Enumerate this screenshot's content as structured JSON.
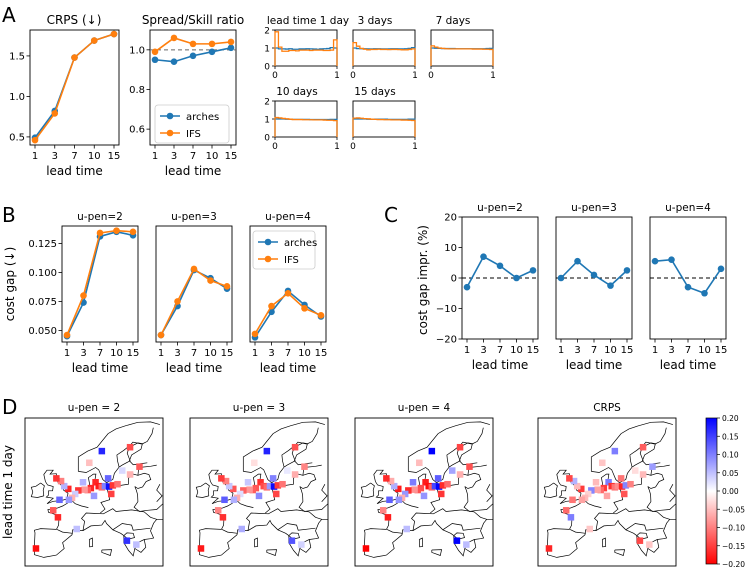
{
  "panel_letters": [
    "A",
    "B",
    "C",
    "D"
  ],
  "colors": {
    "arches": "#1f77b4",
    "ifs": "#ff7f0e",
    "dashed": "#666666",
    "zero": "#000000"
  },
  "chart_data": [
    {
      "id": "crps",
      "panel": "A",
      "type": "line",
      "title": "CRPS (↓)",
      "xlabel": "lead time",
      "ylabel": "",
      "x": [
        1,
        3,
        7,
        10,
        15
      ],
      "xticklabels": [
        "1",
        "3",
        "7",
        "10",
        "15"
      ],
      "yticks": [
        0.5,
        1.0,
        1.5
      ],
      "yticklabels": [
        "0.5",
        "1.0",
        "1.5"
      ],
      "ylim": [
        0.4,
        1.82
      ],
      "series": [
        {
          "name": "arches",
          "values": [
            0.49,
            0.82,
            1.48,
            1.69,
            1.77
          ]
        },
        {
          "name": "IFS",
          "values": [
            0.46,
            0.79,
            1.48,
            1.69,
            1.77
          ]
        }
      ]
    },
    {
      "id": "spread",
      "panel": "A",
      "type": "line",
      "title": "Spread/Skill ratio",
      "xlabel": "lead time",
      "ylabel": "",
      "x": [
        1,
        3,
        7,
        10,
        15
      ],
      "xticklabels": [
        "1",
        "3",
        "7",
        "10",
        "15"
      ],
      "yticks": [
        0.6,
        0.8,
        1.0
      ],
      "yticklabels": [
        "0.6",
        "0.8",
        "1.0"
      ],
      "ylim": [
        0.52,
        1.1
      ],
      "reference_line": 1.0,
      "legend": [
        "arches",
        "IFS"
      ],
      "legend_loc": "lower-right",
      "series": [
        {
          "name": "arches",
          "values": [
            0.95,
            0.94,
            0.97,
            0.99,
            1.01
          ]
        },
        {
          "name": "IFS",
          "values": [
            0.99,
            1.06,
            1.03,
            1.03,
            1.04
          ]
        }
      ]
    },
    {
      "id": "rank_histograms",
      "panel": "A",
      "type": "line",
      "description": "rank histograms (step lines)",
      "xticks": [
        0,
        1
      ],
      "xticklabels": [
        "0",
        "1"
      ],
      "yticks": [
        0,
        1,
        2
      ],
      "yticklabels": [
        "0",
        "1",
        "2"
      ],
      "ylim": [
        0,
        2
      ],
      "plots": [
        {
          "title": "lead time 1 day",
          "show_y": true,
          "arches": [
            1.0,
            0.95,
            0.95,
            0.94,
            0.96,
            0.93,
            0.93,
            0.95,
            0.95,
            0.96,
            0.95,
            0.94,
            0.93,
            0.95,
            0.96,
            0.97,
            1.02,
            1.0
          ],
          "ifs": [
            1.9,
            1.05,
            0.82,
            0.82,
            0.86,
            0.86,
            0.84,
            0.88,
            0.88,
            0.88,
            0.86,
            0.88,
            0.88,
            0.88,
            0.86,
            0.86,
            0.88,
            1.45
          ]
        },
        {
          "title": "3 days",
          "show_y": false,
          "arches": [
            1.0,
            0.97,
            0.96,
            0.96,
            0.95,
            0.95,
            0.96,
            0.96,
            0.95,
            0.95,
            0.95,
            0.96,
            0.96,
            0.95,
            0.95,
            0.96,
            0.98,
            1.02
          ],
          "ifs": [
            1.3,
            1.1,
            0.98,
            0.93,
            0.9,
            0.92,
            0.92,
            0.93,
            0.92,
            0.92,
            0.91,
            0.92,
            0.92,
            0.91,
            0.9,
            0.9,
            0.92,
            0.95
          ]
        },
        {
          "title": "7 days",
          "show_y": false,
          "arches": [
            1.0,
            0.99,
            0.98,
            0.97,
            0.97,
            0.97,
            0.97,
            0.96,
            0.96,
            0.96,
            0.96,
            0.96,
            0.96,
            0.96,
            0.96,
            0.96,
            0.97,
            0.98
          ],
          "ifs": [
            1.12,
            1.05,
            1.0,
            0.98,
            0.96,
            0.95,
            0.95,
            0.95,
            0.95,
            0.95,
            0.95,
            0.95,
            0.94,
            0.94,
            0.94,
            0.93,
            0.93,
            0.92
          ]
        },
        {
          "title": "10 days",
          "show_y": true,
          "arches": [
            1.0,
            1.0,
            1.0,
            0.99,
            0.99,
            0.98,
            0.98,
            0.98,
            0.98,
            0.98,
            0.97,
            0.97,
            0.97,
            0.97,
            0.97,
            0.97,
            0.98,
            0.98
          ],
          "ifs": [
            1.08,
            1.06,
            1.03,
            1.01,
            0.99,
            0.97,
            0.97,
            0.97,
            0.96,
            0.96,
            0.96,
            0.95,
            0.95,
            0.95,
            0.94,
            0.93,
            0.93,
            0.91
          ]
        },
        {
          "title": "15 days",
          "show_y": false,
          "arches": [
            1.0,
            1.0,
            1.0,
            1.0,
            0.99,
            0.99,
            0.99,
            0.99,
            0.99,
            0.99,
            0.98,
            0.98,
            0.98,
            0.98,
            0.98,
            0.98,
            0.99,
            0.99
          ],
          "ifs": [
            1.05,
            1.06,
            1.04,
            1.02,
            1.01,
            0.99,
            0.98,
            0.97,
            0.97,
            0.96,
            0.96,
            0.95,
            0.95,
            0.95,
            0.94,
            0.94,
            0.93,
            0.92
          ]
        }
      ]
    },
    {
      "id": "cost_gap",
      "panel": "B",
      "type": "line",
      "ylabel": "cost gap (↓)",
      "xlabel": "lead time",
      "x": [
        1,
        3,
        7,
        10,
        15
      ],
      "xticklabels": [
        "1",
        "3",
        "7",
        "10",
        "15"
      ],
      "yticks": [
        0.05,
        0.075,
        0.1,
        0.125
      ],
      "yticklabels": [
        "0.050",
        "0.075",
        "0.100",
        "0.125"
      ],
      "ylim": [
        0.04,
        0.14
      ],
      "legend": [
        "arches",
        "IFS"
      ],
      "legend_loc": "upper-right",
      "subplots": [
        {
          "title": "u-pen=2",
          "series": [
            {
              "name": "arches",
              "values": [
                0.045,
                0.074,
                0.131,
                0.135,
                0.132
              ]
            },
            {
              "name": "IFS",
              "values": [
                0.046,
                0.08,
                0.134,
                0.136,
                0.135
              ]
            }
          ]
        },
        {
          "title": "u-pen=3",
          "series": [
            {
              "name": "arches",
              "values": [
                0.046,
                0.071,
                0.102,
                0.095,
                0.086
              ]
            },
            {
              "name": "IFS",
              "values": [
                0.046,
                0.075,
                0.103,
                0.093,
                0.088
              ]
            }
          ]
        },
        {
          "title": "u-pen=4",
          "series": [
            {
              "name": "arches",
              "values": [
                0.044,
                0.066,
                0.084,
                0.072,
                0.062
              ]
            },
            {
              "name": "IFS",
              "values": [
                0.047,
                0.071,
                0.082,
                0.069,
                0.063
              ]
            }
          ]
        }
      ]
    },
    {
      "id": "cost_gap_impr",
      "panel": "C",
      "type": "line",
      "ylabel": "cost gap impr. (%)",
      "xlabel": "lead time",
      "x": [
        1,
        3,
        7,
        10,
        15
      ],
      "xticklabels": [
        "1",
        "3",
        "7",
        "10",
        "15"
      ],
      "yticks": [
        -20,
        -10,
        0,
        10,
        20
      ],
      "yticklabels": [
        "−20",
        "−10",
        "0",
        "10",
        "20"
      ],
      "ylim": [
        -20,
        20
      ],
      "reference_line": 0,
      "subplots": [
        {
          "title": "u-pen=2",
          "values": [
            -3,
            7,
            4,
            0,
            2.5
          ]
        },
        {
          "title": "u-pen=3",
          "values": [
            0,
            5.5,
            1,
            -2.5,
            2.5
          ]
        },
        {
          "title": "u-pen=4",
          "values": [
            5.5,
            6,
            -3,
            -5,
            3
          ]
        }
      ]
    },
    {
      "id": "maps",
      "panel": "D",
      "type": "heatmap",
      "row_label": "lead time 1 day",
      "map_titles": [
        "u-pen = 2",
        "u-pen = 3",
        "u-pen = 4",
        "CRPS"
      ],
      "colorbar_ticks": [
        0.2,
        0.15,
        0.1,
        0.05,
        0.0,
        -0.05,
        -0.1,
        -0.15,
        -0.2
      ],
      "colorbar_ticklabels": [
        "0.20",
        "0.15",
        "0.10",
        "0.05",
        "0.00",
        "−0.05",
        "−0.10",
        "−0.15",
        "−0.20"
      ],
      "colorbar_range": [
        -0.2,
        0.2
      ],
      "points": [
        {
          "lon": 12.5,
          "lat": 63.5,
          "v": 0.17
        },
        {
          "lon": 14.5,
          "lat": 56.5,
          "v": 0.12
        },
        {
          "lon": 21.5,
          "lat": 64.5,
          "v": -0.14
        },
        {
          "lon": 8.5,
          "lat": 60.5,
          "v": -0.05
        },
        {
          "lon": 6.5,
          "lat": 55.5,
          "v": 0.06
        },
        {
          "lon": 10.5,
          "lat": 55.5,
          "v": -0.17
        },
        {
          "lon": 11.5,
          "lat": 54.5,
          "v": -0.18
        },
        {
          "lon": 12.5,
          "lat": 54.2,
          "v": -0.12
        },
        {
          "lon": 13.5,
          "lat": 54.5,
          "v": 0.1
        },
        {
          "lon": 14.8,
          "lat": 54.4,
          "v": 0.19
        },
        {
          "lon": 16.0,
          "lat": 54.7,
          "v": -0.16
        },
        {
          "lon": 17.5,
          "lat": 55.0,
          "v": -0.11
        },
        {
          "lon": 9.0,
          "lat": 54.0,
          "v": -0.17
        },
        {
          "lon": 8.0,
          "lat": 53.5,
          "v": -0.13
        },
        {
          "lon": 7.0,
          "lat": 53.6,
          "v": -0.08
        },
        {
          "lon": 5.0,
          "lat": 53.4,
          "v": -0.16
        },
        {
          "lon": 4.0,
          "lat": 52.5,
          "v": 0.04
        },
        {
          "lon": 3.0,
          "lat": 51.5,
          "v": -0.06
        },
        {
          "lon": 1.8,
          "lat": 53.8,
          "v": -0.17
        },
        {
          "lon": 0.5,
          "lat": 54.5,
          "v": 0.06
        },
        {
          "lon": -0.5,
          "lat": 55.8,
          "v": -0.1
        },
        {
          "lon": -1.0,
          "lat": 51.0,
          "v": 0.12
        },
        {
          "lon": -2.0,
          "lat": 56.5,
          "v": -0.16
        },
        {
          "lon": 2.0,
          "lat": 51.0,
          "v": 0.08
        },
        {
          "lon": -3.0,
          "lat": 48.3,
          "v": -0.13
        },
        {
          "lon": -1.5,
          "lat": 46.5,
          "v": -0.17
        },
        {
          "lon": -8.5,
          "lat": 38.5,
          "v": -0.19
        },
        {
          "lon": 4.5,
          "lat": 43.5,
          "v": 0.05
        },
        {
          "lon": 20.5,
          "lat": 40.5,
          "v": 0.16
        },
        {
          "lon": 23.5,
          "lat": 39.5,
          "v": 0.05
        },
        {
          "lon": 24.5,
          "lat": 59.5,
          "v": -0.13
        },
        {
          "lon": 21.5,
          "lat": 57.5,
          "v": -0.06
        },
        {
          "lon": 19.0,
          "lat": 58.5,
          "v": 0.03
        },
        {
          "lon": 10.0,
          "lat": 52.0,
          "v": 0.08
        },
        {
          "lon": 15.5,
          "lat": 52.5,
          "v": -0.15
        }
      ]
    }
  ]
}
